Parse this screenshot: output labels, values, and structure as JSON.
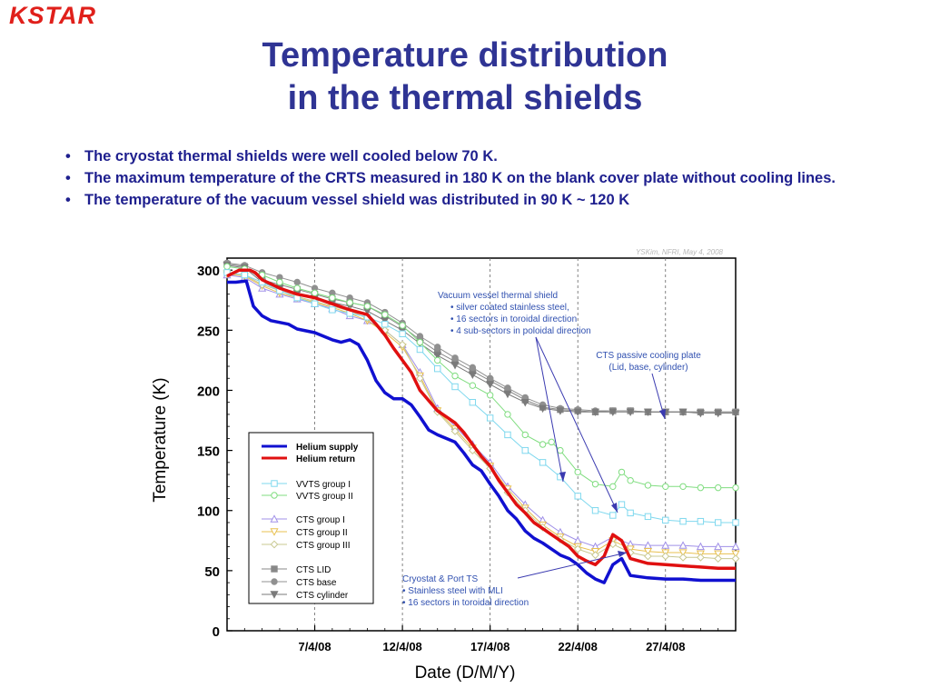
{
  "slide": {
    "logo": "KSTAR",
    "title_line1": "Temperature distribution",
    "title_line2": "in the thermal shields",
    "bullets": [
      "The cryostat thermal shields were well cooled below 70 K.",
      "The maximum temperature of the CRTS measured in 180 K on the blank cover plate without cooling lines.",
      "The temperature of the vacuum vessel shield was distributed in 90 K ~ 120 K"
    ]
  },
  "chart_data": {
    "type": "line",
    "credit": "YSKim, NFRI, May  4, 2008",
    "xlabel": "Date (D/M/Y)",
    "ylabel": "Temperature (K)",
    "xlim": [
      2,
      31
    ],
    "ylim": [
      0,
      310
    ],
    "x_ticks": [
      {
        "x": 7,
        "label": "7/4/08"
      },
      {
        "x": 12,
        "label": "12/4/08"
      },
      {
        "x": 17,
        "label": "17/4/08"
      },
      {
        "x": 22,
        "label": "22/4/08"
      },
      {
        "x": 27,
        "label": "27/4/08"
      }
    ],
    "y_ticks": [
      0,
      50,
      100,
      150,
      200,
      250,
      300
    ],
    "series": [
      {
        "name": "Helium supply",
        "color": "#1010d0",
        "marker": "none",
        "width": 3.5,
        "x": [
          2,
          2.5,
          3.1,
          3.5,
          4.0,
          4.5,
          5.5,
          6.0,
          7.0,
          8.0,
          8.5,
          9.0,
          9.5,
          10.0,
          10.5,
          11.0,
          11.5,
          12.0,
          12.5,
          13.0,
          13.5,
          14.0,
          15.0,
          15.5,
          16.0,
          16.5,
          17.0,
          17.5,
          18.0,
          18.5,
          19.0,
          19.5,
          20.0,
          20.5,
          21.0,
          21.5,
          22.0,
          22.5,
          23.0,
          23.5,
          24.0,
          24.5,
          25.0,
          26.0,
          27.0,
          28.0,
          29.0,
          30.0,
          31.0
        ],
        "y": [
          290,
          290,
          291,
          270,
          262,
          258,
          255,
          251,
          248,
          242,
          240,
          242,
          238,
          225,
          208,
          198,
          193,
          193,
          188,
          178,
          167,
          163,
          157,
          148,
          138,
          133,
          122,
          112,
          100,
          93,
          83,
          77,
          73,
          68,
          63,
          60,
          55,
          48,
          43,
          40,
          55,
          60,
          46,
          44,
          43,
          43,
          42,
          42,
          42
        ]
      },
      {
        "name": "Helium return",
        "color": "#e01010",
        "marker": "none",
        "width": 3.5,
        "x": [
          2,
          2.7,
          3.3,
          3.6,
          4.0,
          5.0,
          6.0,
          7.0,
          8.0,
          9.0,
          10.0,
          10.5,
          11.0,
          11.5,
          12.0,
          12.5,
          13.0,
          14.0,
          14.5,
          15.0,
          15.5,
          16.0,
          16.5,
          17.0,
          17.5,
          18.0,
          18.5,
          19.0,
          19.5,
          20.0,
          20.5,
          21.0,
          21.5,
          22.0,
          22.5,
          23.0,
          23.5,
          24.0,
          24.5,
          25.0,
          26.0,
          27.0,
          28.0,
          29.0,
          30.0,
          31.0
        ],
        "y": [
          295,
          300,
          300,
          298,
          292,
          285,
          280,
          277,
          272,
          267,
          263,
          255,
          246,
          235,
          225,
          215,
          200,
          183,
          178,
          173,
          165,
          155,
          145,
          137,
          125,
          115,
          105,
          98,
          90,
          85,
          80,
          75,
          70,
          62,
          58,
          55,
          62,
          80,
          75,
          60,
          56,
          55,
          54,
          53,
          52,
          52
        ]
      },
      {
        "name": "VVTS group I",
        "color": "#7fd8ee",
        "marker": "square-open",
        "x": [
          2,
          3,
          4,
          5,
          6,
          7,
          8,
          9,
          10,
          11,
          12,
          13,
          14,
          15,
          16,
          17,
          18,
          19,
          20,
          21,
          22,
          23,
          24,
          24.5,
          25,
          26,
          27,
          28,
          29,
          30,
          31
        ],
        "y": [
          298,
          296,
          290,
          283,
          277,
          272,
          267,
          264,
          261,
          255,
          247,
          234,
          218,
          203,
          190,
          177,
          163,
          150,
          140,
          128,
          112,
          100,
          96,
          105,
          98,
          95,
          92,
          91,
          91,
          90,
          90
        ]
      },
      {
        "name": "VVTS group II",
        "color": "#80dd80",
        "marker": "circle-open",
        "x": [
          2,
          3,
          4,
          5,
          6,
          7,
          8,
          9,
          10,
          11,
          12,
          13,
          14,
          15,
          16,
          17,
          18,
          19,
          20,
          20.5,
          21,
          22,
          23,
          24,
          24.5,
          25,
          26,
          27,
          28,
          29,
          30,
          31
        ],
        "y": [
          303,
          301,
          296,
          290,
          285,
          281,
          277,
          273,
          270,
          263,
          254,
          240,
          225,
          212,
          204,
          196,
          180,
          163,
          155,
          157,
          150,
          132,
          122,
          120,
          132,
          125,
          121,
          120,
          120,
          119,
          119,
          119
        ]
      },
      {
        "name": "CTS group I",
        "color": "#a090e8",
        "marker": "triangle-up-open",
        "x": [
          2,
          3,
          4,
          5,
          6,
          7,
          8,
          9,
          10,
          11,
          12,
          13,
          14,
          15,
          16,
          17,
          18,
          19,
          20,
          21,
          22,
          23,
          24,
          25,
          26,
          27,
          28,
          29,
          30,
          31
        ],
        "y": [
          296,
          294,
          285,
          280,
          276,
          272,
          268,
          262,
          258,
          250,
          238,
          215,
          185,
          170,
          155,
          140,
          120,
          105,
          92,
          82,
          75,
          70,
          78,
          72,
          71,
          71,
          71,
          70,
          70,
          70
        ]
      },
      {
        "name": "CTS group II",
        "color": "#e8c050",
        "marker": "triangle-down-open",
        "x": [
          2,
          3,
          4,
          5,
          6,
          7,
          8,
          9,
          10,
          11,
          12,
          13,
          14,
          15,
          16,
          17,
          18,
          19,
          20,
          21,
          22,
          23,
          24,
          25,
          26,
          27,
          28,
          29,
          30,
          31
        ],
        "y": [
          297,
          295,
          287,
          281,
          277,
          273,
          269,
          264,
          258,
          248,
          236,
          212,
          183,
          168,
          152,
          137,
          118,
          102,
          88,
          78,
          70,
          66,
          75,
          68,
          66,
          65,
          65,
          64,
          64,
          64
        ]
      },
      {
        "name": "CTS group III",
        "color": "#c8c890",
        "marker": "diamond-open",
        "x": [
          2,
          3,
          4,
          5,
          6,
          7,
          8,
          9,
          10,
          11,
          12,
          13,
          14,
          15,
          16,
          17,
          18,
          19,
          20,
          21,
          22,
          23,
          24,
          25,
          26,
          27,
          28,
          29,
          30,
          31
        ],
        "y": [
          298,
          296,
          288,
          283,
          278,
          274,
          270,
          266,
          260,
          250,
          238,
          210,
          182,
          166,
          150,
          135,
          115,
          100,
          86,
          76,
          68,
          63,
          72,
          65,
          62,
          62,
          61,
          61,
          60,
          60
        ]
      },
      {
        "name": "CTS LID",
        "color": "#888888",
        "marker": "square-filled",
        "x": [
          2,
          3,
          4,
          5,
          6,
          7,
          8,
          9,
          10,
          11,
          12,
          13,
          14,
          15,
          16,
          17,
          18,
          19,
          20,
          21,
          22,
          23,
          24,
          25,
          26,
          27,
          28,
          29,
          30,
          31
        ],
        "y": [
          305,
          303,
          292,
          288,
          284,
          280,
          276,
          273,
          270,
          262,
          253,
          242,
          232,
          224,
          216,
          208,
          200,
          192,
          186,
          184,
          183,
          182,
          183,
          183,
          182,
          182,
          182,
          182,
          182,
          182
        ]
      },
      {
        "name": "CTS base",
        "color": "#909090",
        "marker": "circle-filled",
        "x": [
          2,
          3,
          4,
          5,
          6,
          7,
          8,
          9,
          10,
          11,
          12,
          13,
          14,
          15,
          16,
          17,
          18,
          19,
          20,
          21,
          22,
          23,
          24,
          25,
          26,
          27,
          28,
          29,
          30,
          31
        ],
        "y": [
          306,
          304,
          298,
          294,
          290,
          285,
          281,
          277,
          273,
          265,
          256,
          245,
          236,
          227,
          219,
          210,
          202,
          194,
          188,
          185,
          184,
          183,
          183,
          183,
          182,
          182,
          182,
          182,
          182,
          182
        ]
      },
      {
        "name": "CTS cylinder",
        "color": "#7a7a7a",
        "marker": "triangle-down-filled",
        "x": [
          2,
          3,
          4,
          5,
          6,
          7,
          8,
          9,
          10,
          11,
          12,
          13,
          14,
          15,
          16,
          17,
          18,
          19,
          20,
          21,
          22,
          23,
          24,
          25,
          26,
          27,
          28,
          29,
          30,
          31
        ],
        "y": [
          304,
          302,
          290,
          285,
          281,
          277,
          273,
          270,
          266,
          258,
          250,
          239,
          229,
          221,
          213,
          205,
          197,
          190,
          185,
          183,
          182,
          182,
          182,
          182,
          182,
          182,
          182,
          181,
          181,
          181
        ]
      }
    ],
    "annotations": [
      {
        "lines": [
          "Vacuum vessel thermal shield",
          "•  silver coated stainless steel,",
          "•  16 sectors in toroidal direction",
          "•  4 sub-sectors in poloidal direction"
        ]
      },
      {
        "lines": [
          "CTS passive cooling plate",
          "(Lid, base, cylinder)"
        ]
      },
      {
        "lines": [
          "Cryostat & Port TS",
          "•  Stainless steel with MLI",
          "•  16 sectors in toroidal direction"
        ]
      }
    ]
  }
}
